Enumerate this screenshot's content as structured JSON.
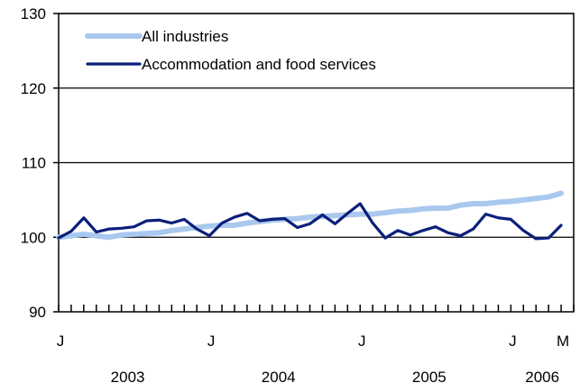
{
  "chart_data": {
    "type": "line",
    "title": "",
    "xlabel": "",
    "ylabel": "",
    "ylim": [
      90,
      130
    ],
    "yticks": [
      90,
      100,
      110,
      120,
      130
    ],
    "grid": true,
    "legend_position": "top-left",
    "colors": {
      "all_industries": "#a9c8ee",
      "accommodation": "#0b1f7a",
      "grid": "#000000"
    },
    "x_month_labels": [
      {
        "index": 0,
        "label": "J"
      },
      {
        "index": 12,
        "label": "J"
      },
      {
        "index": 24,
        "label": "J"
      },
      {
        "index": 36,
        "label": "J"
      },
      {
        "index": 40,
        "label": "M"
      }
    ],
    "x_year_labels": [
      {
        "center": 5.5,
        "label": "2003"
      },
      {
        "center": 17.5,
        "label": "2004"
      },
      {
        "center": 29.5,
        "label": "2005"
      },
      {
        "center": 38.5,
        "label": "2006"
      }
    ],
    "x": [
      "2003-01",
      "2003-02",
      "2003-03",
      "2003-04",
      "2003-05",
      "2003-06",
      "2003-07",
      "2003-08",
      "2003-09",
      "2003-10",
      "2003-11",
      "2003-12",
      "2004-01",
      "2004-02",
      "2004-03",
      "2004-04",
      "2004-05",
      "2004-06",
      "2004-07",
      "2004-08",
      "2004-09",
      "2004-10",
      "2004-11",
      "2004-12",
      "2005-01",
      "2005-02",
      "2005-03",
      "2005-04",
      "2005-05",
      "2005-06",
      "2005-07",
      "2005-08",
      "2005-09",
      "2005-10",
      "2005-11",
      "2005-12",
      "2006-01",
      "2006-02",
      "2006-03",
      "2006-04",
      "2006-05"
    ],
    "series": [
      {
        "name": "All industries",
        "values": [
          100.0,
          100.2,
          100.4,
          100.2,
          100.0,
          100.3,
          100.4,
          100.5,
          100.6,
          100.9,
          101.1,
          101.3,
          101.5,
          101.6,
          101.6,
          101.9,
          102.1,
          102.3,
          102.4,
          102.5,
          102.7,
          102.8,
          102.9,
          103.0,
          103.1,
          103.1,
          103.3,
          103.5,
          103.6,
          103.8,
          103.9,
          103.9,
          104.3,
          104.5,
          104.5,
          104.7,
          104.8,
          105.0,
          105.2,
          105.4,
          105.9
        ]
      },
      {
        "name": "Accommodation and food services",
        "values": [
          99.9,
          100.8,
          102.6,
          100.7,
          101.1,
          101.2,
          101.4,
          102.2,
          102.3,
          101.9,
          102.4,
          101.1,
          100.2,
          101.9,
          102.7,
          103.2,
          102.2,
          102.4,
          102.5,
          101.3,
          101.8,
          103.0,
          101.8,
          103.2,
          104.5,
          101.9,
          99.9,
          100.9,
          100.3,
          100.9,
          101.4,
          100.6,
          100.2,
          101.1,
          103.1,
          102.6,
          102.4,
          100.9,
          99.8,
          99.9,
          101.6
        ]
      }
    ]
  }
}
